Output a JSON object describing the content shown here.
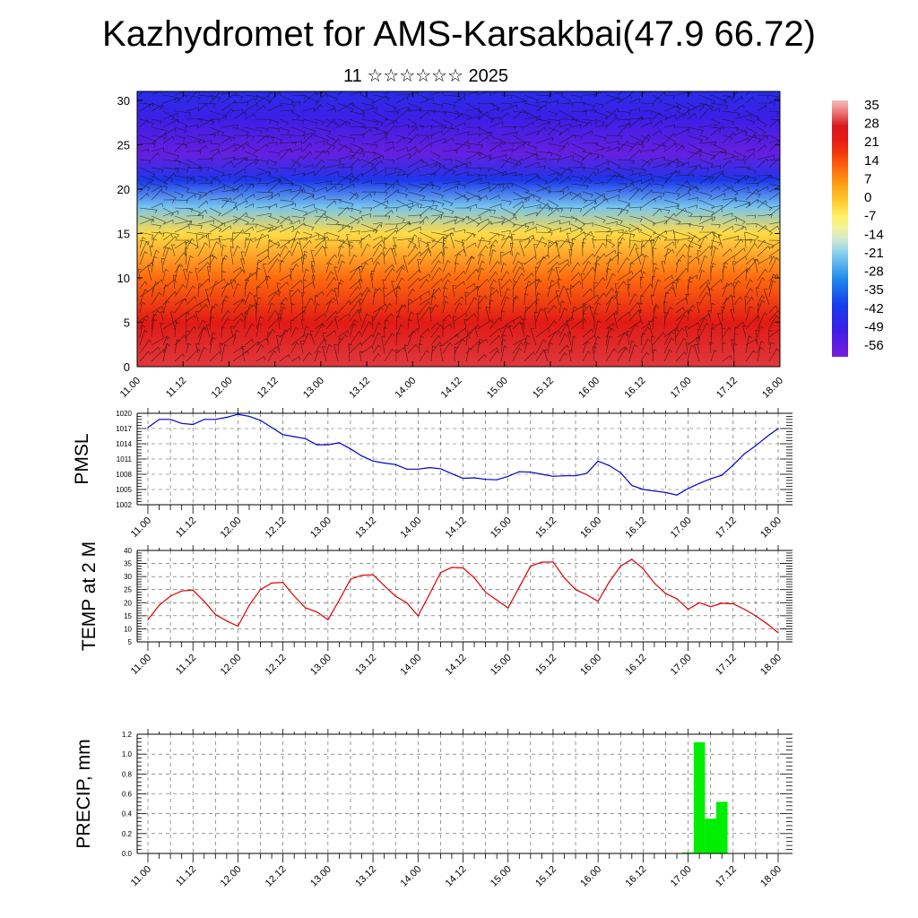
{
  "title": "Kazhydromet for AMS-Karsakbai(47.9 66.72)",
  "subtitle": "11 ☆☆☆☆☆☆ 2025",
  "chart_data": [
    {
      "type": "heatmap",
      "name": "cross-section",
      "x_ticks": [
        "11.00",
        "11.12",
        "12.00",
        "12.12",
        "13.00",
        "13.12",
        "14.00",
        "14.12",
        "15.00",
        "15.12",
        "16.00",
        "16.12",
        "17.00",
        "17.12",
        "18.00"
      ],
      "y_ticks": [
        0,
        5,
        10,
        15,
        20,
        25,
        30
      ],
      "ylim": [
        0,
        31
      ],
      "colorbar_labels": [
        "35",
        "28",
        "21",
        "14",
        "7",
        "0",
        "-7",
        "-14",
        "-21",
        "-28",
        "-35",
        "-42",
        "-49",
        "-56"
      ],
      "colorbar_range": [
        -60,
        38
      ],
      "temperature_profile_by_height": [
        {
          "h": 0,
          "t": 30
        },
        {
          "h": 5,
          "t": 24
        },
        {
          "h": 10,
          "t": 12
        },
        {
          "h": 15,
          "t": -3
        },
        {
          "h": 18,
          "t": -22
        },
        {
          "h": 21,
          "t": -42
        },
        {
          "h": 24,
          "t": -57
        },
        {
          "h": 28,
          "t": -50
        },
        {
          "h": 31,
          "t": -45
        }
      ],
      "wind_barbs": true
    },
    {
      "type": "line",
      "ylabel": "PMSL",
      "ylim": [
        1002,
        1020
      ],
      "y_ticks": [
        1002,
        1005,
        1008,
        1011,
        1014,
        1017,
        1020
      ],
      "x_ticks": [
        "11.00",
        "11.12",
        "12.00",
        "12.12",
        "13.00",
        "13.12",
        "14.00",
        "14.12",
        "15.00",
        "15.12",
        "16.00",
        "16.12",
        "17.00",
        "17.12",
        "18.00"
      ],
      "color": "#0000cc",
      "x": [
        0,
        3,
        6,
        9,
        12,
        15,
        18,
        21,
        24,
        27,
        30,
        33,
        36,
        39,
        42,
        45,
        48,
        51,
        54,
        57,
        60,
        63,
        66,
        69,
        72,
        75,
        78,
        81,
        84,
        87,
        90,
        93,
        96,
        99,
        102,
        105,
        108,
        111,
        114,
        117,
        120,
        123,
        126,
        129,
        132,
        135,
        138,
        141,
        144,
        147,
        150,
        153,
        156,
        159,
        162,
        165,
        168
      ],
      "values": [
        1017.2,
        1018.8,
        1018.8,
        1018.0,
        1017.8,
        1018.8,
        1018.8,
        1019.2,
        1019.8,
        1019.4,
        1018.6,
        1017.2,
        1015.8,
        1015.4,
        1015.0,
        1013.8,
        1013.8,
        1014.2,
        1013.0,
        1011.6,
        1010.6,
        1010.2,
        1009.9,
        1009.0,
        1009.0,
        1009.3,
        1009.1,
        1008.1,
        1007.2,
        1007.3,
        1007.0,
        1006.9,
        1007.6,
        1008.5,
        1008.4,
        1008.0,
        1007.6,
        1007.7,
        1007.7,
        1008.2,
        1010.6,
        1009.7,
        1008.3,
        1005.8,
        1005.0,
        1004.7,
        1004.4,
        1003.9,
        1005.2,
        1006.2,
        1007.1,
        1007.8,
        1009.8,
        1012.0,
        1013.6,
        1015.4,
        1017.0
      ]
    },
    {
      "type": "line",
      "ylabel": "TEMP at 2 M",
      "ylim": [
        5,
        40
      ],
      "y_ticks": [
        5,
        10,
        15,
        20,
        25,
        30,
        35,
        40
      ],
      "x_ticks": [
        "11.00",
        "11.12",
        "12.00",
        "12.12",
        "13.00",
        "13.12",
        "14.00",
        "14.12",
        "15.00",
        "15.12",
        "16.00",
        "16.12",
        "17.00",
        "17.12",
        "18.00"
      ],
      "color": "#dd0000",
      "x": [
        0,
        3,
        6,
        9,
        12,
        15,
        18,
        21,
        24,
        27,
        30,
        33,
        36,
        39,
        42,
        45,
        48,
        51,
        54,
        57,
        60,
        63,
        66,
        69,
        72,
        75,
        78,
        81,
        84,
        87,
        90,
        93,
        96,
        99,
        102,
        105,
        108,
        111,
        114,
        117,
        120,
        123,
        126,
        129,
        132,
        135,
        138,
        141,
        144,
        147,
        150,
        153,
        156,
        159,
        162,
        165,
        168
      ],
      "values": [
        13.5,
        19,
        22.5,
        24.5,
        24.8,
        20.5,
        15.5,
        13,
        11,
        19,
        25,
        27.5,
        27.8,
        22.5,
        18,
        16.5,
        13.5,
        21,
        29,
        30.5,
        30.7,
        26.5,
        22.5,
        20,
        15,
        23,
        31.5,
        33.5,
        33.3,
        29.5,
        24,
        21,
        18,
        26,
        34,
        35.5,
        35.6,
        29.5,
        25,
        23,
        20.5,
        28,
        34,
        36.6,
        33,
        27.5,
        23.5,
        21.5,
        17.5,
        20,
        18.5,
        19.8,
        19.6,
        17.5,
        15,
        12,
        8.5
      ]
    },
    {
      "type": "bar",
      "ylabel": "PRECIP, mm",
      "ylim": [
        0,
        1.2
      ],
      "y_ticks": [
        "0.0",
        "0.2",
        "0.4",
        "0.6",
        "0.8",
        "1.0",
        "1.2"
      ],
      "x_ticks": [
        "11.00",
        "11.12",
        "12.00",
        "12.12",
        "13.00",
        "13.12",
        "14.00",
        "14.12",
        "15.00",
        "15.12",
        "16.00",
        "16.12",
        "17.00",
        "17.12",
        "18.00"
      ],
      "color": "#00ee00",
      "x": [
        144,
        147,
        150,
        153,
        156
      ],
      "values": [
        0.01,
        1.12,
        0.35,
        0.52,
        0.0
      ]
    }
  ]
}
